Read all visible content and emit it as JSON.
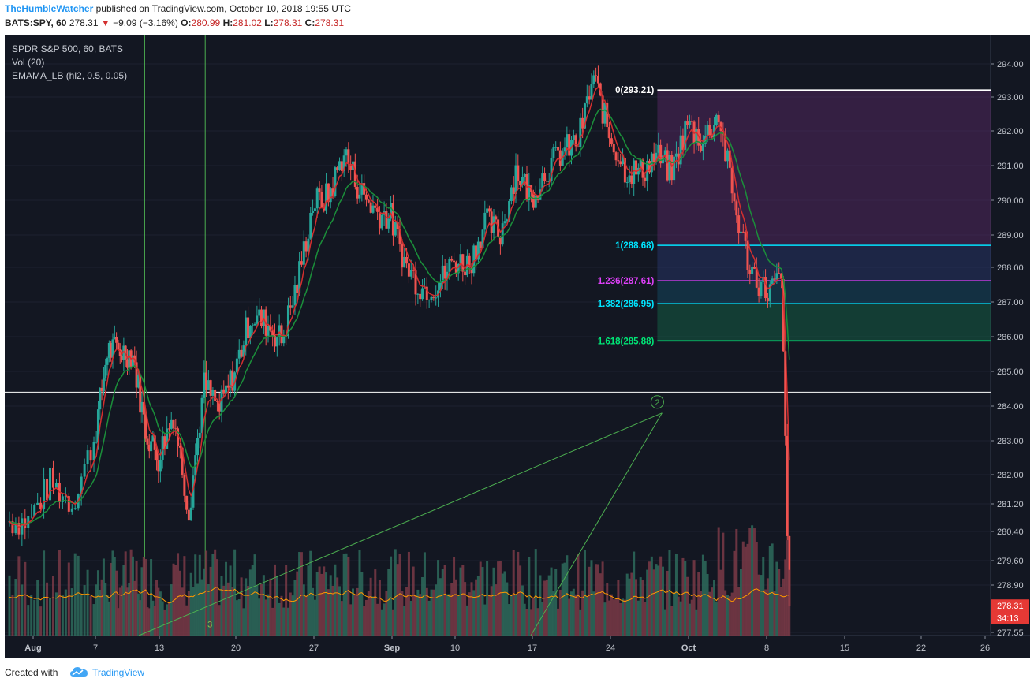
{
  "header": {
    "author": "TheHumbleWatcher",
    "published_text": "published on TradingView.com, October 10, 2018 19:55 UTC",
    "symbol": "BATS:SPY, 60",
    "last": "278.31",
    "change": "−9.09 (−3.16%)",
    "open_label": "O:",
    "open": "280.99",
    "high_label": "H:",
    "high": "281.02",
    "low_label": "L:",
    "low": "278.31",
    "close_label": "C:",
    "close": "278.31"
  },
  "legend": {
    "title": "SPDR S&P 500, 60, BATS",
    "volume": "Vol (20)",
    "indicator": "EMAMA_LB (hl2, 0.5, 0.05)"
  },
  "footer": {
    "created_with": "Created with",
    "brand": "TradingView"
  },
  "colors": {
    "background": "#131722",
    "up": "#26a69a",
    "down": "#ef5350",
    "fib_zero": "#ffffff",
    "fib_one": "#00e5ff",
    "fib_1236": "#e040fb",
    "fib_1382": "#00e5ff",
    "fib_1618": "#00e676",
    "trendline": "#4caf50",
    "volume_ma": "#ff9800"
  },
  "chart_data": {
    "type": "candlestick",
    "symbol": "SPY",
    "timeframe": "60",
    "ylim": [
      277.55,
      294.2
    ],
    "y_ticks": [
      "294.00",
      "293.00",
      "292.00",
      "291.00",
      "290.00",
      "289.00",
      "288.00",
      "287.00",
      "286.00",
      "285.00",
      "284.00",
      "283.00",
      "282.00",
      "281.20",
      "280.40",
      "279.60",
      "278.90",
      "277.55"
    ],
    "x_ticks": [
      "Aug",
      "7",
      "13",
      "20",
      "27",
      "Sep",
      "10",
      "17",
      "24",
      "Oct",
      "8",
      "15",
      "22",
      "26"
    ],
    "price_path": [
      {
        "x": "Aug 1",
        "y": 280.7
      },
      {
        "x": "Aug 2",
        "y": 281.8
      },
      {
        "x": "Aug 3",
        "y": 281.2
      },
      {
        "x": "Aug 6",
        "y": 283.0
      },
      {
        "x": "Aug 7",
        "y": 285.6
      },
      {
        "x": "Aug 8",
        "y": 285.6
      },
      {
        "x": "Aug 9",
        "y": 285.5
      },
      {
        "x": "Aug 10",
        "y": 283.3
      },
      {
        "x": "Aug 13",
        "y": 282.5
      },
      {
        "x": "Aug 14",
        "y": 283.8
      },
      {
        "x": "Aug 15",
        "y": 281.0
      },
      {
        "x": "Aug 16",
        "y": 284.6
      },
      {
        "x": "Aug 17",
        "y": 283.9
      },
      {
        "x": "Aug 20",
        "y": 285.0
      },
      {
        "x": "Aug 21",
        "y": 286.6
      },
      {
        "x": "Aug 22",
        "y": 286.4
      },
      {
        "x": "Aug 23",
        "y": 285.9
      },
      {
        "x": "Aug 24",
        "y": 287.5
      },
      {
        "x": "Aug 27",
        "y": 289.9
      },
      {
        "x": "Aug 28",
        "y": 290.1
      },
      {
        "x": "Aug 29",
        "y": 291.4
      },
      {
        "x": "Aug 30",
        "y": 290.3
      },
      {
        "x": "Aug 31",
        "y": 289.7
      },
      {
        "x": "Sep 4",
        "y": 289.5
      },
      {
        "x": "Sep 5",
        "y": 288.0
      },
      {
        "x": "Sep 6",
        "y": 287.4
      },
      {
        "x": "Sep 7",
        "y": 287.5
      },
      {
        "x": "Sep 10",
        "y": 288.2
      },
      {
        "x": "Sep 11",
        "y": 288.1
      },
      {
        "x": "Sep 12",
        "y": 289.4
      },
      {
        "x": "Sep 13",
        "y": 289.0
      },
      {
        "x": "Sep 14",
        "y": 290.9
      },
      {
        "x": "Sep 17",
        "y": 290.1
      },
      {
        "x": "Sep 18",
        "y": 290.9
      },
      {
        "x": "Sep 19",
        "y": 291.4
      },
      {
        "x": "Sep 20",
        "y": 291.7
      },
      {
        "x": "Sep 21",
        "y": 293.6
      },
      {
        "x": "Sep 24",
        "y": 291.9
      },
      {
        "x": "Sep 25",
        "y": 290.9
      },
      {
        "x": "Sep 26",
        "y": 290.8
      },
      {
        "x": "Sep 27",
        "y": 291.3
      },
      {
        "x": "Sep 28",
        "y": 290.8
      },
      {
        "x": "Oct 1",
        "y": 292.2
      },
      {
        "x": "Oct 2",
        "y": 291.7
      },
      {
        "x": "Oct 3",
        "y": 292.5
      },
      {
        "x": "Oct 4",
        "y": 289.9
      },
      {
        "x": "Oct 5",
        "y": 288.0
      },
      {
        "x": "Oct 8",
        "y": 287.3
      },
      {
        "x": "Oct 9",
        "y": 287.6
      },
      {
        "x": "Oct 10",
        "y": 278.31
      }
    ],
    "horizontal_line": 284.4,
    "fibonacci": [
      {
        "label": "0(293.21)",
        "value": 293.21
      },
      {
        "label": "1(288.68)",
        "value": 288.68
      },
      {
        "label": "1.236(287.61)",
        "value": 287.61
      },
      {
        "label": "1.382(286.95)",
        "value": 286.95
      },
      {
        "label": "1.618(285.88)",
        "value": 285.88
      }
    ],
    "annotations": [
      {
        "label": "2",
        "x": "Sep 28",
        "y": 283.8
      },
      {
        "label": "3",
        "x": "Aug 17",
        "y": 277.7
      }
    ],
    "price_labels": [
      {
        "label": "278.31",
        "value": 278.31
      },
      {
        "label": "34:13",
        "value": 277.97
      }
    ]
  }
}
